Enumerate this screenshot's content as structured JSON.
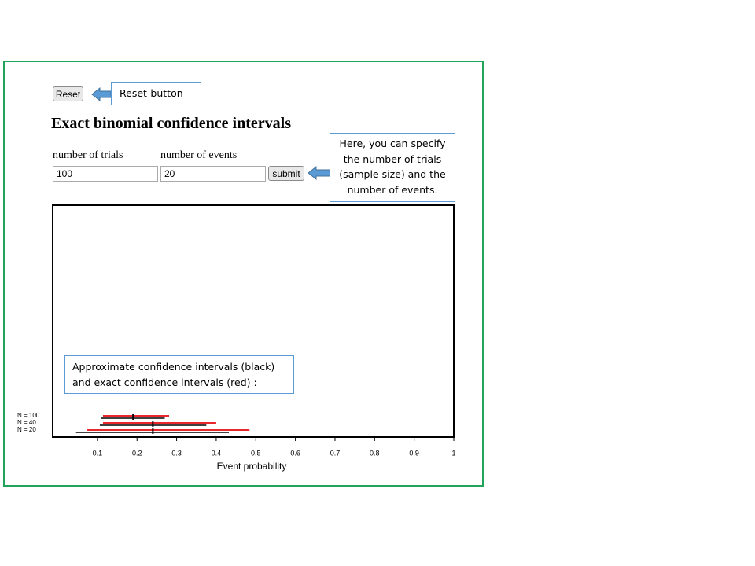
{
  "reset_button": "Reset",
  "title": "Exact binomial confidence intervals",
  "form": {
    "trials_label": "number of trials",
    "trials_value": "100",
    "events_label": "number of events",
    "events_value": "20",
    "submit": "submit"
  },
  "annotations": {
    "reset": "Reset-button",
    "inputs": [
      "Here, you can specify",
      "the number of trials",
      "(sample size) and the",
      "number of events."
    ],
    "legend": [
      "Approximate confidence intervals (black)",
      "and exact confidence intervals (red) :"
    ]
  },
  "chart_data": {
    "type": "interval",
    "xlabel": "Event probability",
    "xlim": [
      -0.013,
      1
    ],
    "xticks": [
      0.1,
      0.2,
      0.3,
      0.4,
      0.5,
      0.6,
      0.7,
      0.8,
      0.9,
      1
    ],
    "exact_color": "#e8262b",
    "approx_color": "#000000",
    "rows": [
      {
        "label": "N = 100",
        "estimate": 0.19,
        "approx": [
          0.11,
          0.27
        ],
        "exact": [
          0.114,
          0.281
        ]
      },
      {
        "label": "N = 40",
        "estimate": 0.24,
        "approx": [
          0.106,
          0.375
        ],
        "exact": [
          0.114,
          0.4
        ]
      },
      {
        "label": "N = 20",
        "estimate": 0.24,
        "approx": [
          0.046,
          0.432
        ],
        "exact": [
          0.074,
          0.484
        ]
      }
    ]
  }
}
